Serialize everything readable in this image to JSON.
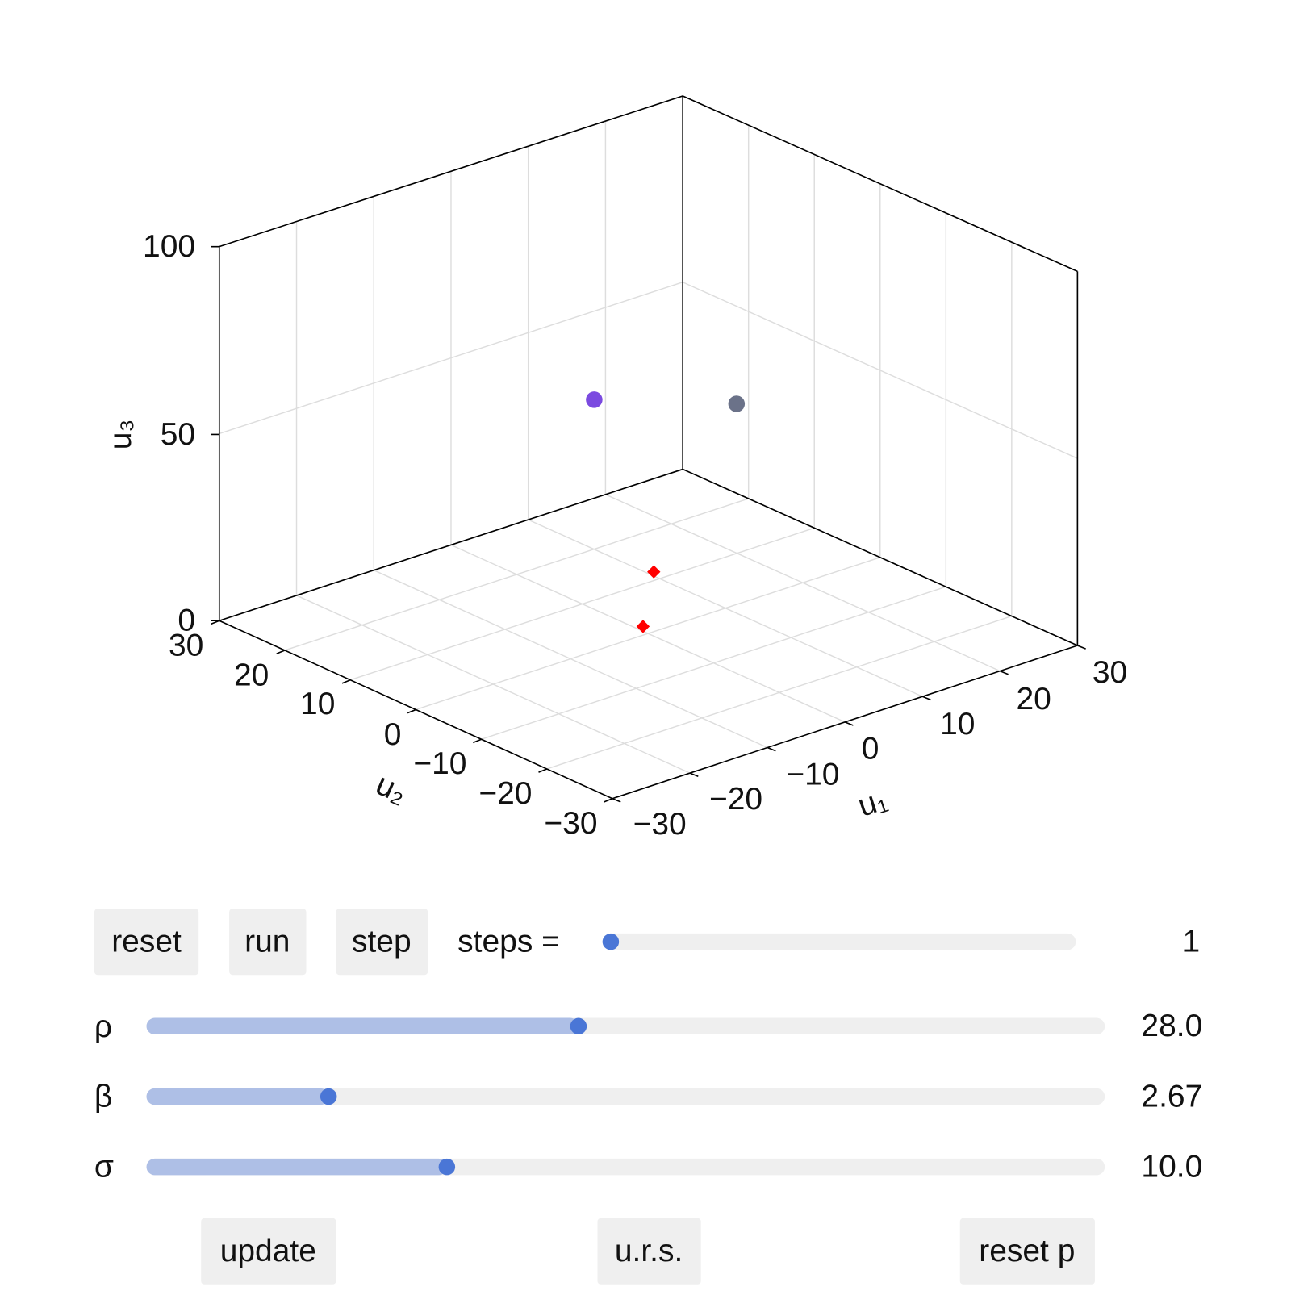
{
  "plot": {
    "z_label": "u₃",
    "x_label": "u₁",
    "y_label": "u₂",
    "z_ticks": [
      "0",
      "50",
      "100"
    ],
    "x_ticks": [
      "−30",
      "−20",
      "−10",
      "0",
      "10",
      "20",
      "30"
    ],
    "y_ticks": [
      "30",
      "20",
      "10",
      "0",
      "−10",
      "−20",
      "−30"
    ]
  },
  "controls": {
    "buttons": [
      "reset",
      "run",
      "step"
    ],
    "steps_label": "steps =",
    "steps_value": "1",
    "sliders": [
      {
        "label": "ρ",
        "value": "28.0"
      },
      {
        "label": "β",
        "value": "2.67"
      },
      {
        "label": "σ",
        "value": "10.0"
      }
    ],
    "bottom_buttons": [
      "update",
      "u.r.s.",
      "reset p"
    ]
  }
}
